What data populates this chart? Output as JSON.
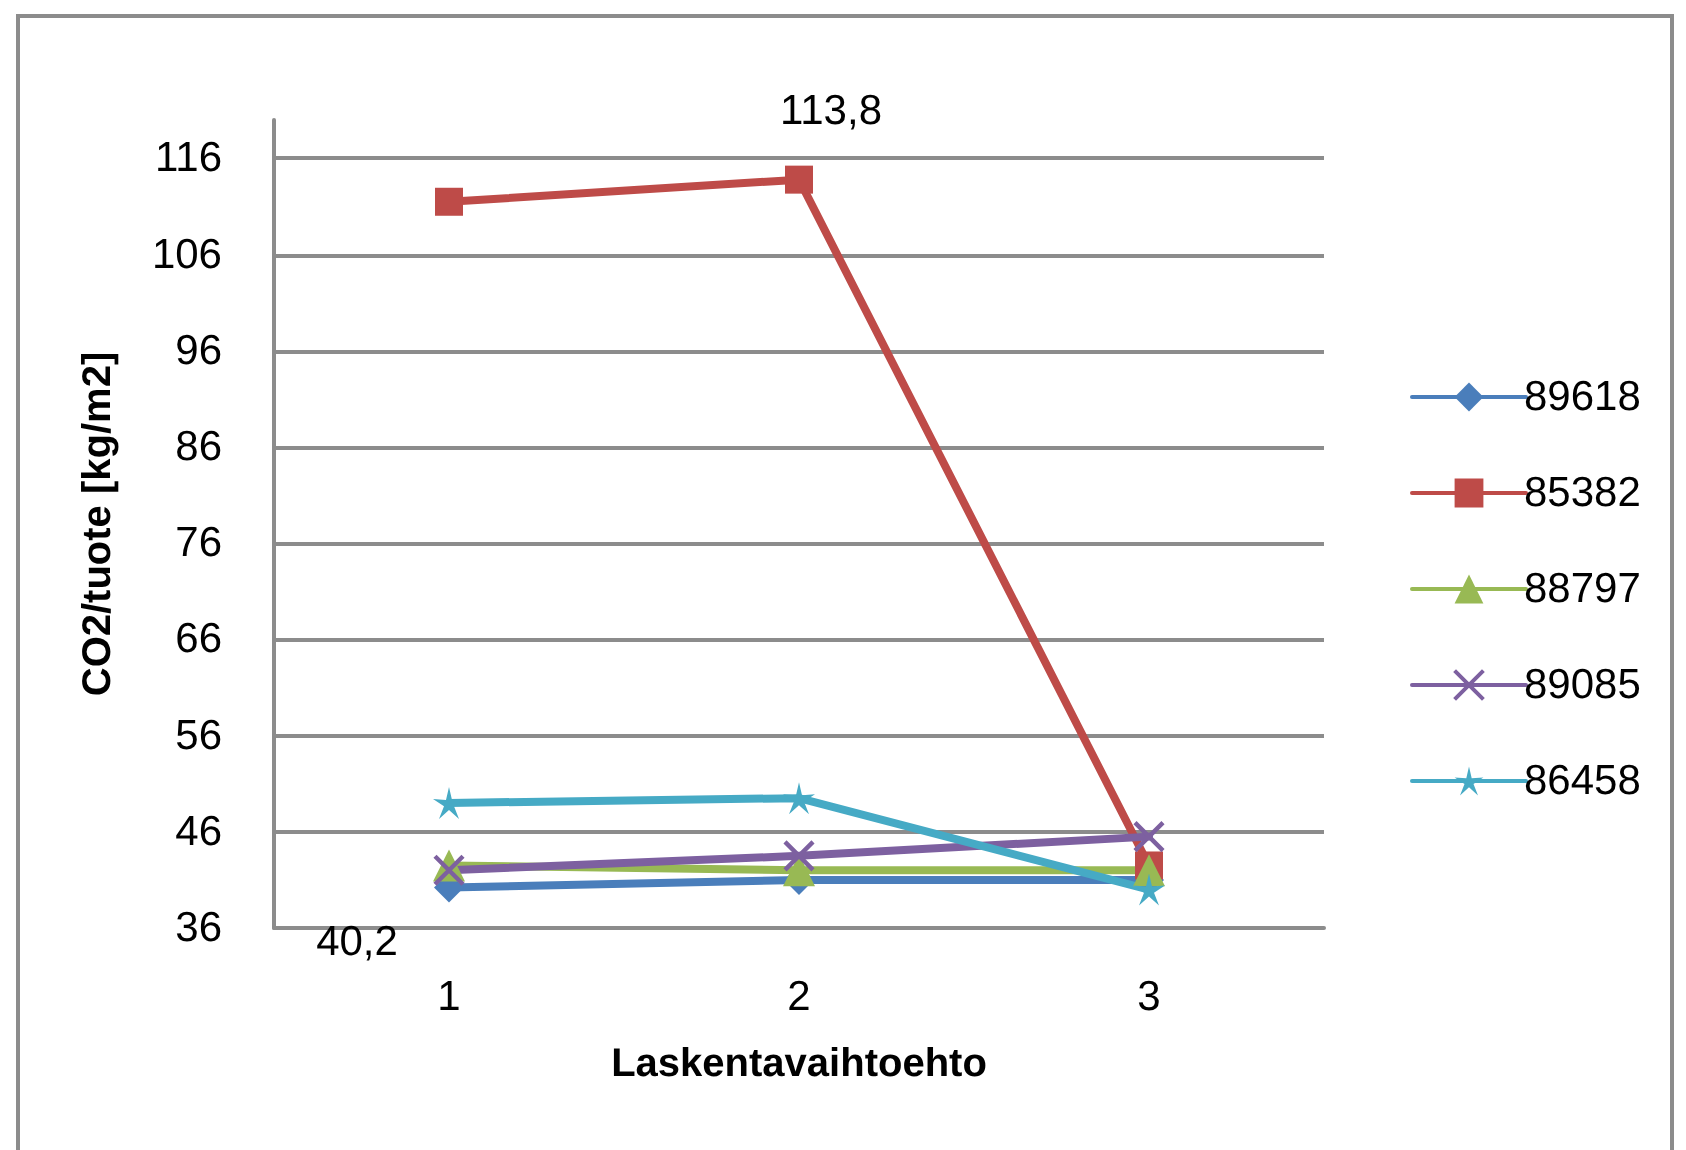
{
  "chart_data": {
    "type": "line",
    "xlabel": "Laskentavaihtoehto",
    "ylabel": "CO2/tuote [kg/m2]",
    "categories": [
      "1",
      "2",
      "3"
    ],
    "series": [
      {
        "name": "89618",
        "color": "#4a7ebb",
        "marker": "diamond",
        "values": [
          40.2,
          41,
          41
        ],
        "value_labels": [
          "40,2",
          null,
          null
        ]
      },
      {
        "name": "85382",
        "color": "#be4b48",
        "marker": "square",
        "values": [
          111.5,
          113.8,
          42.5
        ],
        "value_labels": [
          null,
          "113,8",
          null
        ]
      },
      {
        "name": "88797",
        "color": "#98b954",
        "marker": "triangle",
        "values": [
          42.5,
          42,
          42
        ]
      },
      {
        "name": "89085",
        "color": "#7d60a0",
        "marker": "cross",
        "values": [
          42,
          43.5,
          45.5
        ]
      },
      {
        "name": "86458",
        "color": "#46aac5",
        "marker": "star",
        "values": [
          49,
          49.5,
          40
        ]
      }
    ],
    "ylim": [
      36,
      120
    ],
    "yticks": [
      36,
      46,
      56,
      66,
      76,
      86,
      96,
      106,
      116
    ],
    "grid": "y",
    "legend": "right",
    "line_style": "solid"
  }
}
